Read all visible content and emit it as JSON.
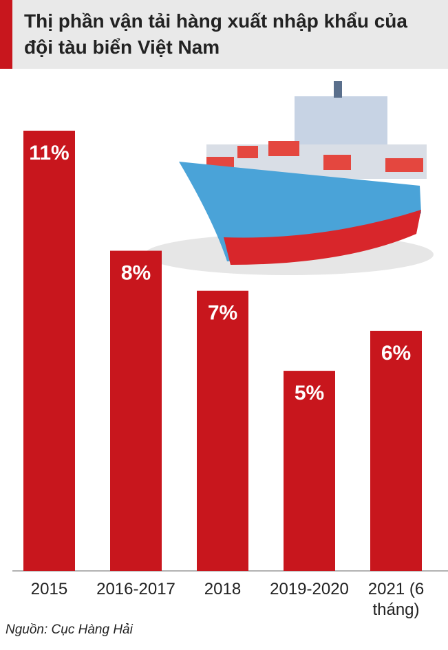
{
  "chart_data": {
    "type": "bar",
    "title": "Thị phần vận tải hàng xuất nhập khẩu của đội tàu biển Việt Nam",
    "categories": [
      "2015",
      "2016-2017",
      "2018",
      "2019-2020",
      "2021 (6 tháng)"
    ],
    "values": [
      11,
      8,
      7,
      5,
      6
    ],
    "value_labels": [
      "11%",
      "8%",
      "7%",
      "5%",
      "6%"
    ],
    "color": "#c8161d",
    "ylim": [
      0,
      11
    ],
    "source": "Nguồn: Cục Hàng Hải"
  }
}
